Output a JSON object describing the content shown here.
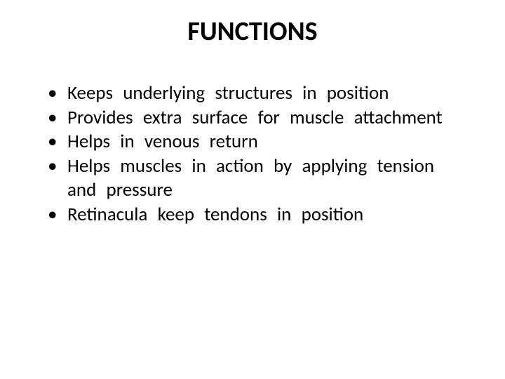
{
  "slide": {
    "title": "FUNCTIONS",
    "title_fontsize": 38,
    "body_fontsize": 27,
    "title_color": "#000000",
    "body_color": "#000000",
    "background_color": "#ffffff",
    "bullets": [
      {
        "text": "Keeps  underlying  structures  in  position",
        "indent_first_word": false
      },
      {
        "text": " Provides  extra  surface  for  muscle   attachment",
        "indent_first_word": false
      },
      {
        "text": " Helps  in  venous  return",
        "indent_first_word": false
      },
      {
        "text": "Helps  muscles  in  action  by applying  tension and  pressure",
        "indent_first_word": false
      },
      {
        "text": " Retinacula  keep  tendons  in  position",
        "indent_first_word": false
      }
    ]
  }
}
